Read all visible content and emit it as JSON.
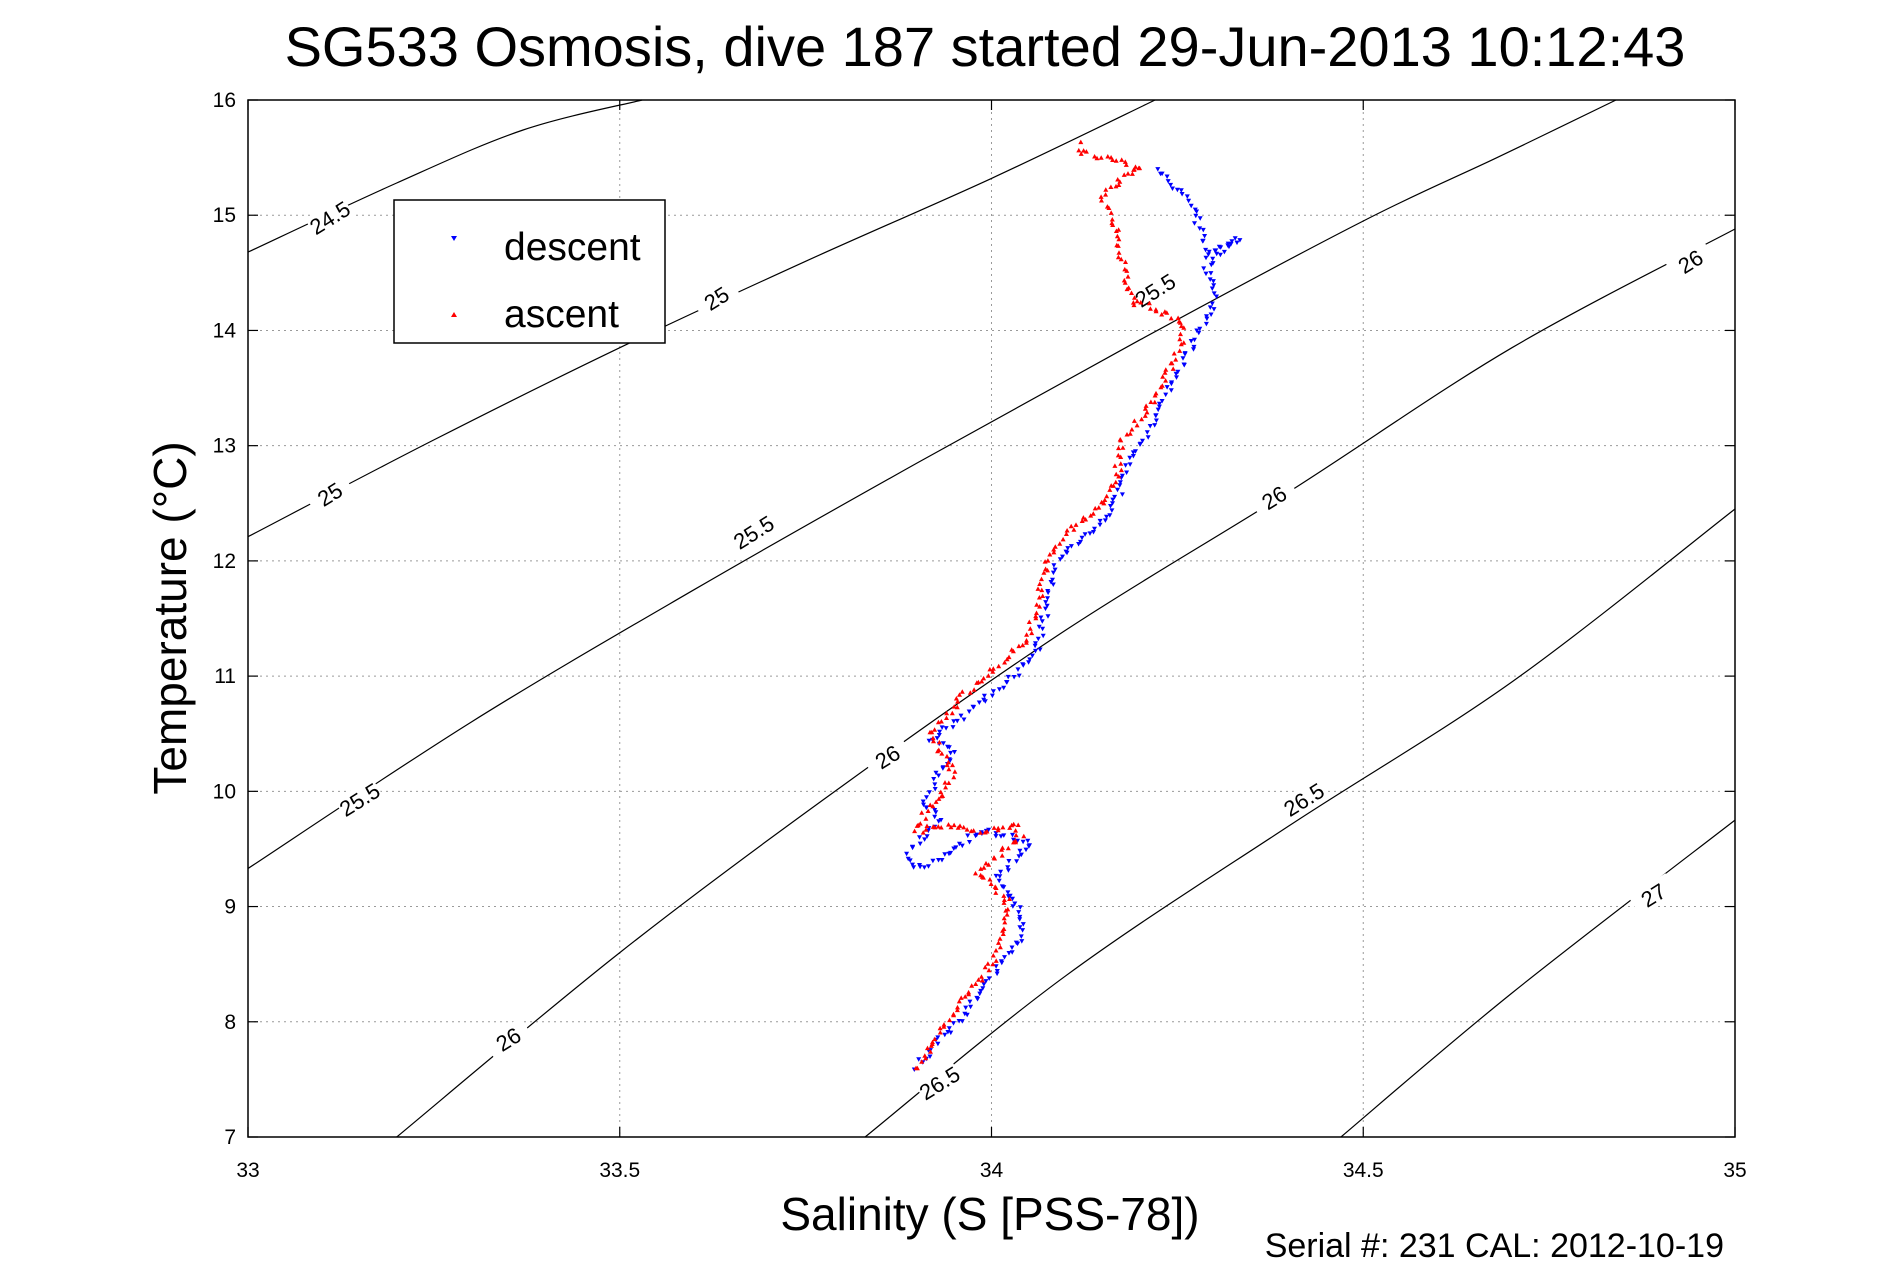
{
  "chart_data": {
    "type": "scatter",
    "title": "SG533 Osmosis, dive 187 started 29-Jun-2013 10:12:43",
    "xlabel": "Salinity (S [PSS-78])",
    "ylabel": "Temperature (°C)",
    "xlim": [
      33,
      35
    ],
    "ylim": [
      7,
      16
    ],
    "xticks": [
      "33",
      "33.5",
      "34",
      "34.5",
      "35"
    ],
    "yticks": [
      "7",
      "8",
      "9",
      "10",
      "11",
      "12",
      "13",
      "14",
      "15",
      "16"
    ],
    "grid": true,
    "legend_position": "top-left",
    "footer": "Serial #: 231  CAL: 2012-10-19",
    "contours": [
      {
        "label": "24.5",
        "points": [
          [
            33.0,
            14.68
          ],
          [
            33.2,
            15.28
          ],
          [
            33.37,
            15.74
          ],
          [
            33.53,
            16.0
          ]
        ],
        "label_at": [
          33.11,
          14.98
        ]
      },
      {
        "label": "25",
        "points": [
          [
            33.0,
            12.21
          ],
          [
            33.25,
            13.05
          ],
          [
            33.5,
            13.85
          ],
          [
            33.75,
            14.6
          ],
          [
            34.0,
            15.32
          ],
          [
            34.22,
            16.0
          ]
        ],
        "label_at": [
          33.63,
          14.28
        ]
      },
      {
        "label": "25",
        "points": [],
        "label_at": [
          33.11,
          12.58
        ]
      },
      {
        "label": "25.5",
        "points": [
          [
            33.0,
            9.33
          ],
          [
            33.3,
            10.6
          ],
          [
            33.6,
            11.75
          ],
          [
            33.9,
            12.85
          ],
          [
            34.2,
            13.92
          ],
          [
            34.5,
            14.95
          ],
          [
            34.68,
            15.5
          ],
          [
            34.84,
            16.0
          ]
        ],
        "label_at": [
          33.68,
          12.25
        ]
      },
      {
        "label": "25.5",
        "points": [],
        "label_at": [
          33.15,
          9.93
        ]
      },
      {
        "label": "25.5",
        "points": [],
        "label_at": [
          34.22,
          14.35
        ]
      },
      {
        "label": "26",
        "points": [
          [
            33.2,
            7.0
          ],
          [
            33.5,
            8.6
          ],
          [
            33.8,
            10.05
          ],
          [
            34.1,
            11.4
          ],
          [
            34.4,
            12.6
          ],
          [
            34.7,
            13.85
          ],
          [
            35.0,
            14.88
          ]
        ],
        "label_at": [
          33.35,
          7.85
        ]
      },
      {
        "label": "26",
        "points": [],
        "label_at": [
          33.86,
          10.3
        ]
      },
      {
        "label": "26",
        "points": [],
        "label_at": [
          34.38,
          12.55
        ]
      },
      {
        "label": "26",
        "points": [],
        "label_at": [
          34.94,
          14.6
        ]
      },
      {
        "label": "26.5",
        "points": [
          [
            33.83,
            7.0
          ],
          [
            34.1,
            8.4
          ],
          [
            34.4,
            9.7
          ],
          [
            34.7,
            10.95
          ],
          [
            35.0,
            12.45
          ]
        ],
        "label_at": [
          33.93,
          7.47
        ]
      },
      {
        "label": "26.5",
        "points": [],
        "label_at": [
          34.42,
          9.93
        ]
      },
      {
        "label": "27",
        "points": [
          [
            34.47,
            7.0
          ],
          [
            34.7,
            8.25
          ],
          [
            35.0,
            9.75
          ]
        ],
        "label_at": [
          34.89,
          9.1
        ]
      }
    ],
    "series": [
      {
        "name": "descent",
        "marker": "triangle-down",
        "color": "#0000ff",
        "path": [
          [
            33.9,
            7.6
          ],
          [
            33.93,
            7.85
          ],
          [
            33.96,
            8.05
          ],
          [
            33.99,
            8.3
          ],
          [
            34.02,
            8.55
          ],
          [
            34.04,
            8.75
          ],
          [
            34.04,
            8.95
          ],
          [
            34.02,
            9.1
          ],
          [
            34.01,
            9.25
          ],
          [
            34.03,
            9.4
          ],
          [
            34.05,
            9.55
          ],
          [
            34.0,
            9.65
          ],
          [
            33.97,
            9.6
          ],
          [
            33.94,
            9.45
          ],
          [
            33.91,
            9.35
          ],
          [
            33.89,
            9.35
          ],
          [
            33.89,
            9.5
          ],
          [
            33.91,
            9.6
          ],
          [
            33.93,
            9.75
          ],
          [
            33.91,
            9.9
          ],
          [
            33.93,
            10.15
          ],
          [
            33.95,
            10.35
          ],
          [
            33.92,
            10.45
          ],
          [
            33.95,
            10.6
          ],
          [
            33.99,
            10.8
          ],
          [
            34.03,
            11.0
          ],
          [
            34.06,
            11.2
          ],
          [
            34.07,
            11.5
          ],
          [
            34.08,
            11.75
          ],
          [
            34.09,
            12.0
          ],
          [
            34.12,
            12.2
          ],
          [
            34.15,
            12.35
          ],
          [
            34.17,
            12.55
          ],
          [
            34.18,
            12.75
          ],
          [
            34.2,
            13.0
          ],
          [
            34.22,
            13.25
          ],
          [
            34.24,
            13.5
          ],
          [
            34.26,
            13.75
          ],
          [
            34.28,
            14.0
          ],
          [
            34.3,
            14.25
          ],
          [
            34.29,
            14.55
          ],
          [
            34.31,
            14.7
          ],
          [
            34.33,
            14.8
          ],
          [
            34.29,
            14.65
          ],
          [
            34.27,
            15.1
          ],
          [
            34.24,
            15.3
          ],
          [
            34.22,
            15.4
          ]
        ]
      },
      {
        "name": "ascent",
        "marker": "triangle-up",
        "color": "#ff0000",
        "path": [
          [
            33.9,
            7.58
          ],
          [
            33.93,
            7.9
          ],
          [
            33.96,
            8.2
          ],
          [
            33.99,
            8.4
          ],
          [
            34.01,
            8.6
          ],
          [
            34.02,
            8.85
          ],
          [
            34.02,
            9.05
          ],
          [
            34.0,
            9.2
          ],
          [
            33.98,
            9.3
          ],
          [
            34.01,
            9.45
          ],
          [
            34.04,
            9.6
          ],
          [
            34.03,
            9.72
          ],
          [
            33.99,
            9.65
          ],
          [
            33.95,
            9.7
          ],
          [
            33.92,
            9.7
          ],
          [
            33.9,
            9.65
          ],
          [
            33.91,
            9.8
          ],
          [
            33.93,
            9.95
          ],
          [
            33.95,
            10.15
          ],
          [
            33.93,
            10.35
          ],
          [
            33.92,
            10.5
          ],
          [
            33.95,
            10.75
          ],
          [
            33.98,
            10.95
          ],
          [
            34.02,
            11.15
          ],
          [
            34.05,
            11.35
          ],
          [
            34.06,
            11.6
          ],
          [
            34.07,
            11.85
          ],
          [
            34.08,
            12.05
          ],
          [
            34.11,
            12.3
          ],
          [
            34.14,
            12.45
          ],
          [
            34.16,
            12.6
          ],
          [
            34.17,
            12.75
          ],
          [
            34.17,
            12.9
          ],
          [
            34.18,
            13.1
          ],
          [
            34.21,
            13.3
          ],
          [
            34.23,
            13.55
          ],
          [
            34.25,
            13.8
          ],
          [
            34.26,
            14.05
          ],
          [
            34.22,
            14.2
          ],
          [
            34.19,
            14.25
          ],
          [
            34.18,
            14.45
          ],
          [
            34.17,
            14.85
          ],
          [
            34.15,
            15.15
          ],
          [
            34.17,
            15.3
          ],
          [
            34.2,
            15.42
          ],
          [
            34.12,
            15.55
          ],
          [
            34.12,
            15.65
          ]
        ]
      }
    ]
  },
  "colors": {
    "descent": "#0000ff",
    "ascent": "#ff0000",
    "axes": "#000000",
    "grid": "#9a9a9a"
  }
}
